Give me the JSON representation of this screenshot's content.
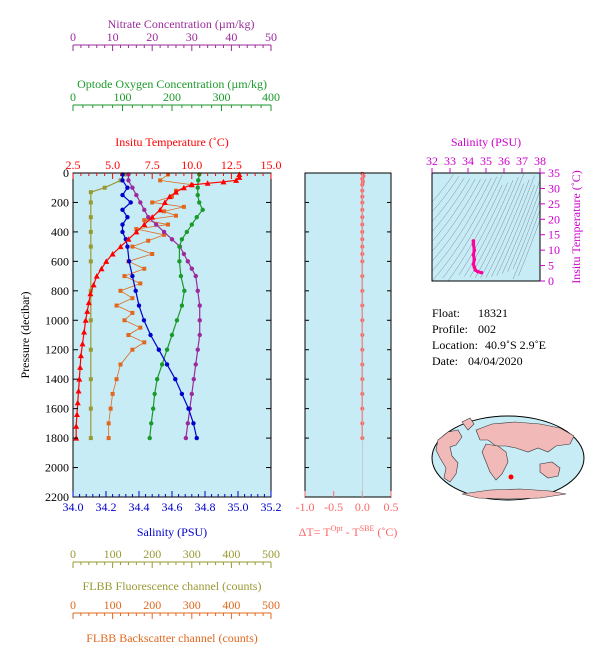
{
  "colors": {
    "panel_bg": "#c8ecf5",
    "nitrate": "#9b2a9b",
    "oxygen": "#1a9a2a",
    "temperature": "#ff0000",
    "salinity": "#0000cc",
    "fluorescence": "#999933",
    "backscatter": "#e0681e",
    "delta_t": "#ff6666",
    "ts_axis": "#cc00cc",
    "ts_profile": "#ff0099"
  },
  "axes": {
    "nitrate": {
      "title": "Nitrate Concentration (µm/kg)",
      "ticks": [
        "0",
        "10",
        "20",
        "30",
        "40",
        "50"
      ],
      "range": [
        0,
        50
      ]
    },
    "oxygen": {
      "title": "Optode Oxygen Concentration (µm/kg)",
      "ticks": [
        "0",
        "100",
        "200",
        "300",
        "400"
      ],
      "range": [
        0,
        400
      ]
    },
    "temperature": {
      "title": "Insitu Temperature (˚C)",
      "ticks": [
        "2.5",
        "5.0",
        "7.5",
        "10.0",
        "12.5",
        "15.0"
      ],
      "range": [
        2.5,
        15.0
      ]
    },
    "pressure": {
      "title": "Pressure (decibar)",
      "ticks": [
        "0",
        "200",
        "400",
        "600",
        "800",
        "1000",
        "1200",
        "1400",
        "1600",
        "1800",
        "2000",
        "2200"
      ],
      "range": [
        0,
        2200
      ]
    },
    "salinity": {
      "title": "Salinity (PSU)",
      "ticks": [
        "34.0",
        "34.2",
        "34.4",
        "34.6",
        "34.8",
        "35.0",
        "35.2"
      ],
      "range": [
        34.0,
        35.2
      ]
    },
    "delta_t": {
      "title_prefix": "ΔT= T",
      "sup1": "Opt",
      "title_mid": " - T",
      "sup2": "SBE",
      "title_suffix": " (˚C)",
      "ticks": [
        "-1.0",
        "-0.5",
        "0.0",
        "0.5"
      ],
      "range": [
        -1.0,
        0.5
      ]
    },
    "fluorescence": {
      "title": "FLBB Fluorescence channel (counts)",
      "ticks": [
        "0",
        "100",
        "200",
        "300",
        "400",
        "500"
      ],
      "range": [
        0,
        500
      ]
    },
    "backscatter": {
      "title": "FLBB Backscatter channel (counts)",
      "ticks": [
        "0",
        "100",
        "200",
        "300",
        "400",
        "500"
      ],
      "range": [
        0,
        500
      ]
    },
    "ts_salinity": {
      "title": "Salinity (PSU)",
      "ticks": [
        "32",
        "33",
        "34",
        "35",
        "36",
        "37",
        "38"
      ],
      "range": [
        32,
        38
      ]
    },
    "ts_temperature": {
      "title": "Insitu Temperature (˚C)",
      "ticks": [
        "0",
        "5",
        "10",
        "15",
        "20",
        "25",
        "30",
        "35"
      ],
      "range": [
        0,
        35
      ]
    }
  },
  "info": {
    "float_label": "Float:",
    "float_value": "18321",
    "profile_label": "Profile:",
    "profile_value": "002",
    "location_label": "Location:",
    "location_value": "40.9˚S   2.9˚E",
    "date_label": "Date:",
    "date_value": "04/04/2020"
  },
  "chart_data": {
    "type": "line",
    "y_axis": "pressure",
    "y_inverted": true,
    "series": [
      {
        "key": "temperature",
        "axis": "temperature",
        "marker": "triangle",
        "points": [
          [
            13.0,
            10
          ],
          [
            13.0,
            30
          ],
          [
            12.8,
            50
          ],
          [
            12.0,
            60
          ],
          [
            11.0,
            70
          ],
          [
            10.0,
            80
          ],
          [
            9.5,
            100
          ],
          [
            9.0,
            130
          ],
          [
            8.6,
            160
          ],
          [
            8.3,
            200
          ],
          [
            8.0,
            250
          ],
          [
            7.5,
            300
          ],
          [
            7.0,
            350
          ],
          [
            6.5,
            400
          ],
          [
            6.0,
            450
          ],
          [
            5.5,
            500
          ],
          [
            5.0,
            550
          ],
          [
            4.6,
            600
          ],
          [
            4.3,
            650
          ],
          [
            4.0,
            700
          ],
          [
            3.8,
            760
          ],
          [
            3.6,
            820
          ],
          [
            3.5,
            880
          ],
          [
            3.4,
            940
          ],
          [
            3.3,
            1000
          ],
          [
            3.2,
            1080
          ],
          [
            3.1,
            1160
          ],
          [
            3.0,
            1240
          ],
          [
            2.95,
            1320
          ],
          [
            2.9,
            1400
          ],
          [
            2.85,
            1480
          ],
          [
            2.8,
            1560
          ],
          [
            2.75,
            1640
          ],
          [
            2.7,
            1720
          ],
          [
            2.7,
            1800
          ]
        ]
      },
      {
        "key": "salinity",
        "axis": "salinity",
        "marker": "circle",
        "points": [
          [
            34.3,
            10
          ],
          [
            34.3,
            50
          ],
          [
            34.33,
            100
          ],
          [
            34.3,
            150
          ],
          [
            34.35,
            200
          ],
          [
            34.3,
            250
          ],
          [
            34.33,
            300
          ],
          [
            34.3,
            350
          ],
          [
            34.3,
            400
          ],
          [
            34.32,
            450
          ],
          [
            34.33,
            500
          ],
          [
            34.34,
            600
          ],
          [
            34.36,
            700
          ],
          [
            34.38,
            800
          ],
          [
            34.4,
            900
          ],
          [
            34.43,
            1000
          ],
          [
            34.47,
            1100
          ],
          [
            34.52,
            1200
          ],
          [
            34.57,
            1300
          ],
          [
            34.62,
            1400
          ],
          [
            34.66,
            1500
          ],
          [
            34.7,
            1600
          ],
          [
            34.73,
            1700
          ],
          [
            34.75,
            1800
          ]
        ]
      },
      {
        "key": "nitrate",
        "axis": "nitrate",
        "marker": "circle",
        "points": [
          [
            14,
            10
          ],
          [
            14,
            50
          ],
          [
            15,
            100
          ],
          [
            16,
            150
          ],
          [
            17,
            200
          ],
          [
            18,
            250
          ],
          [
            19,
            300
          ],
          [
            21,
            350
          ],
          [
            23,
            400
          ],
          [
            25,
            450
          ],
          [
            27,
            500
          ],
          [
            28,
            550
          ],
          [
            29,
            600
          ],
          [
            30,
            650
          ],
          [
            31,
            700
          ],
          [
            31.5,
            800
          ],
          [
            32,
            900
          ],
          [
            32,
            1000
          ],
          [
            32,
            1100
          ],
          [
            31.5,
            1200
          ],
          [
            31,
            1300
          ],
          [
            30.5,
            1400
          ],
          [
            30,
            1500
          ],
          [
            29.5,
            1600
          ],
          [
            29,
            1700
          ],
          [
            28.5,
            1800
          ]
        ]
      },
      {
        "key": "oxygen",
        "axis": "oxygen",
        "marker": "circle",
        "points": [
          [
            255,
            10
          ],
          [
            253,
            50
          ],
          [
            252,
            100
          ],
          [
            252,
            150
          ],
          [
            255,
            200
          ],
          [
            262,
            250
          ],
          [
            250,
            300
          ],
          [
            240,
            350
          ],
          [
            230,
            400
          ],
          [
            220,
            450
          ],
          [
            215,
            500
          ],
          [
            215,
            600
          ],
          [
            218,
            700
          ],
          [
            225,
            800
          ],
          [
            220,
            900
          ],
          [
            210,
            1000
          ],
          [
            200,
            1100
          ],
          [
            190,
            1200
          ],
          [
            180,
            1300
          ],
          [
            170,
            1400
          ],
          [
            165,
            1500
          ],
          [
            162,
            1600
          ],
          [
            158,
            1700
          ],
          [
            155,
            1800
          ]
        ]
      },
      {
        "key": "fluorescence",
        "axis": "fluorescence",
        "marker": "square",
        "points": [
          [
            130,
            10
          ],
          [
            120,
            50
          ],
          [
            80,
            100
          ],
          [
            45,
            130
          ],
          [
            45,
            200
          ],
          [
            45,
            300
          ],
          [
            45,
            400
          ],
          [
            45,
            500
          ],
          [
            45,
            600
          ],
          [
            45,
            800
          ],
          [
            45,
            1000
          ],
          [
            45,
            1200
          ],
          [
            45,
            1400
          ],
          [
            45,
            1600
          ],
          [
            45,
            1800
          ]
        ]
      },
      {
        "key": "backscatter",
        "axis": "backscatter",
        "marker": "square",
        "points": [
          [
            240,
            10
          ],
          [
            220,
            50
          ],
          [
            300,
            80
          ],
          [
            260,
            120
          ],
          [
            250,
            160
          ],
          [
            200,
            200
          ],
          [
            280,
            230
          ],
          [
            230,
            260
          ],
          [
            260,
            290
          ],
          [
            180,
            320
          ],
          [
            240,
            350
          ],
          [
            160,
            380
          ],
          [
            230,
            420
          ],
          [
            190,
            460
          ],
          [
            150,
            500
          ],
          [
            200,
            550
          ],
          [
            140,
            600
          ],
          [
            180,
            650
          ],
          [
            130,
            700
          ],
          [
            170,
            750
          ],
          [
            120,
            800
          ],
          [
            150,
            850
          ],
          [
            110,
            900
          ],
          [
            150,
            950
          ],
          [
            130,
            1000
          ],
          [
            170,
            1050
          ],
          [
            140,
            1100
          ],
          [
            180,
            1150
          ],
          [
            150,
            1200
          ],
          [
            120,
            1300
          ],
          [
            110,
            1400
          ],
          [
            100,
            1500
          ],
          [
            95,
            1600
          ],
          [
            90,
            1700
          ],
          [
            90,
            1800
          ]
        ]
      }
    ],
    "delta_t": {
      "points": [
        [
          0.0,
          5
        ],
        [
          0.02,
          20
        ],
        [
          0.0,
          40
        ],
        [
          0.01,
          60
        ],
        [
          0.0,
          80
        ],
        [
          0.0,
          120
        ],
        [
          0.0,
          160
        ],
        [
          0.0,
          200
        ],
        [
          0.0,
          250
        ],
        [
          0.0,
          300
        ],
        [
          0.0,
          350
        ],
        [
          0.0,
          400
        ],
        [
          0.0,
          450
        ],
        [
          0.0,
          500
        ],
        [
          0.0,
          550
        ],
        [
          0.0,
          600
        ],
        [
          0.0,
          700
        ],
        [
          0.0,
          800
        ],
        [
          0.0,
          900
        ],
        [
          0.0,
          1000
        ],
        [
          0.0,
          1100
        ],
        [
          0.0,
          1200
        ],
        [
          0.0,
          1300
        ],
        [
          0.0,
          1400
        ],
        [
          0.0,
          1500
        ],
        [
          0.0,
          1600
        ],
        [
          0.0,
          1700
        ],
        [
          0.0,
          1800
        ]
      ]
    },
    "ts": {
      "points": [
        [
          34.3,
          13.0
        ],
        [
          34.3,
          12.0
        ],
        [
          34.35,
          10.0
        ],
        [
          34.3,
          8.5
        ],
        [
          34.35,
          7.0
        ],
        [
          34.3,
          5.5
        ],
        [
          34.35,
          4.5
        ],
        [
          34.4,
          3.6
        ],
        [
          34.55,
          3.0
        ],
        [
          34.75,
          2.7
        ]
      ]
    }
  }
}
